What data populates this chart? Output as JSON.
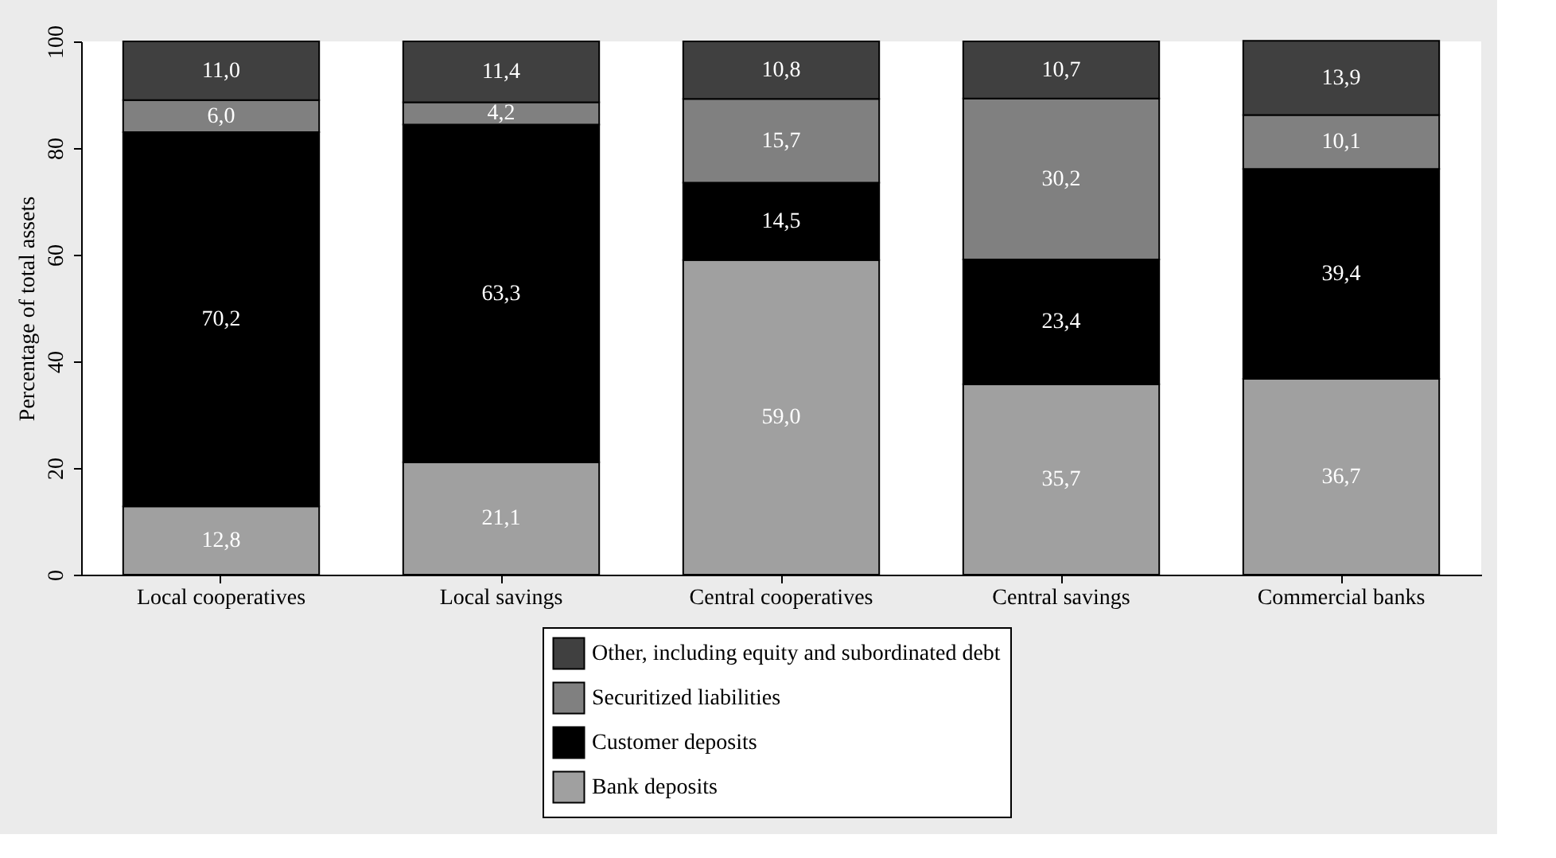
{
  "chart_data": {
    "type": "bar",
    "stacked": true,
    "ylabel": "Percentage of total assets",
    "categories": [
      "Local cooperatives",
      "Local savings",
      "Central cooperatives",
      "Central savings",
      "Commercial banks"
    ],
    "series": [
      {
        "name": "Bank deposits",
        "color": "#a0a0a0",
        "values": [
          12.8,
          21.1,
          59.0,
          35.7,
          36.7
        ],
        "value_labels": [
          "12,8",
          "21,1",
          "59,0",
          "35,7",
          "36,7"
        ]
      },
      {
        "name": "Customer deposits",
        "color": "#000000",
        "values": [
          70.2,
          63.3,
          14.5,
          23.4,
          39.4
        ],
        "value_labels": [
          "70,2",
          "63,3",
          "14,5",
          "23,4",
          "39,4"
        ]
      },
      {
        "name": "Securitized liabilities",
        "color": "#808080",
        "values": [
          6.0,
          4.2,
          15.7,
          30.2,
          10.1
        ],
        "value_labels": [
          "6,0",
          "4,2",
          "15,7",
          "30,2",
          "10,1"
        ]
      },
      {
        "name": "Other, including equity and subordinated debt",
        "color": "#404040",
        "values": [
          11.0,
          11.4,
          10.8,
          10.7,
          13.9
        ],
        "value_labels": [
          "11,0",
          "11,4",
          "10,8",
          "10,7",
          "13,9"
        ]
      }
    ],
    "ylim": [
      0,
      100
    ],
    "yticks": [
      0,
      20,
      40,
      60,
      80,
      100
    ],
    "grid": false,
    "legend": "bottom"
  }
}
